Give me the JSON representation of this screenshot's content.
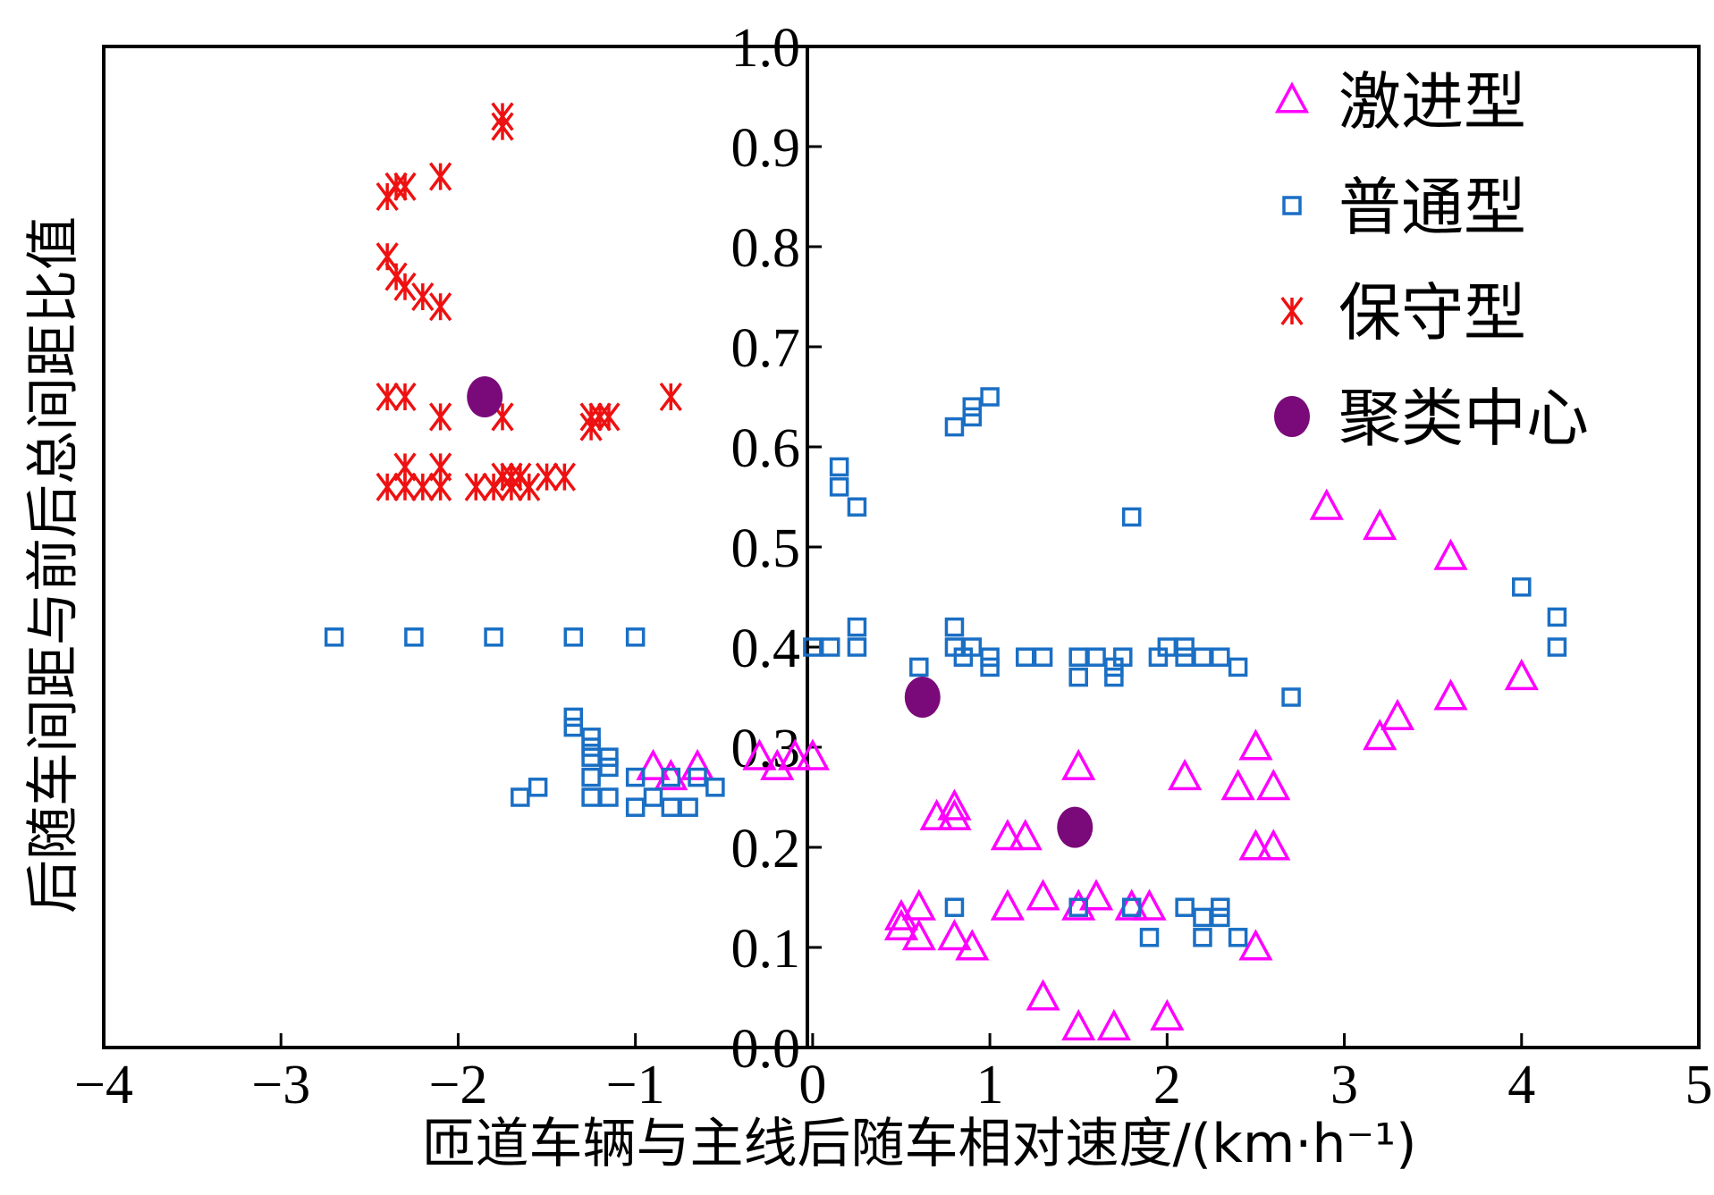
{
  "chart_data": {
    "type": "scatter",
    "xlim": [
      -4,
      5
    ],
    "ylim": [
      0,
      1
    ],
    "x_ticks": [
      "−4",
      "−3",
      "−2",
      "−1",
      "0",
      "1",
      "2",
      "3",
      "4",
      "5"
    ],
    "y_ticks": [
      "0.0",
      "0.1",
      "0.2",
      "0.3",
      "0.4",
      "0.5",
      "0.6",
      "0.7",
      "0.8",
      "0.9",
      "1.0"
    ],
    "xlabel": "匝道车辆与主线后随车相对速度/(km·h⁻¹)",
    "ylabel": "后随车间距与前后总间距比值",
    "grid": false,
    "legend_position": "top-right",
    "series": [
      {
        "name": "激进型",
        "marker": "triangle",
        "color": "#ff00ff",
        "points": [
          [
            -0.9,
            0.28
          ],
          [
            -0.8,
            0.27
          ],
          [
            -0.65,
            0.28
          ],
          [
            -0.3,
            0.29
          ],
          [
            -0.2,
            0.28
          ],
          [
            -0.1,
            0.29
          ],
          [
            0.0,
            0.29
          ],
          [
            0.5,
            0.13
          ],
          [
            0.5,
            0.12
          ],
          [
            0.6,
            0.14
          ],
          [
            0.6,
            0.11
          ],
          [
            0.7,
            0.23
          ],
          [
            0.8,
            0.24
          ],
          [
            0.8,
            0.23
          ],
          [
            0.8,
            0.11
          ],
          [
            0.9,
            0.1
          ],
          [
            1.1,
            0.21
          ],
          [
            1.2,
            0.21
          ],
          [
            1.1,
            0.14
          ],
          [
            1.3,
            0.15
          ],
          [
            1.3,
            0.05
          ],
          [
            1.5,
            0.28
          ],
          [
            1.5,
            0.14
          ],
          [
            1.5,
            0.02
          ],
          [
            1.6,
            0.15
          ],
          [
            1.7,
            0.02
          ],
          [
            1.8,
            0.14
          ],
          [
            1.9,
            0.14
          ],
          [
            2.0,
            0.03
          ],
          [
            2.1,
            0.27
          ],
          [
            2.4,
            0.26
          ],
          [
            2.5,
            0.3
          ],
          [
            2.5,
            0.2
          ],
          [
            2.6,
            0.26
          ],
          [
            2.6,
            0.2
          ],
          [
            2.5,
            0.1
          ],
          [
            2.9,
            0.54
          ],
          [
            3.2,
            0.52
          ],
          [
            3.2,
            0.31
          ],
          [
            3.3,
            0.33
          ],
          [
            3.6,
            0.49
          ],
          [
            3.6,
            0.35
          ],
          [
            4.0,
            0.37
          ]
        ]
      },
      {
        "name": "普通型",
        "marker": "square",
        "color": "#1a6fc4",
        "points": [
          [
            -2.7,
            0.41
          ],
          [
            -2.25,
            0.41
          ],
          [
            -1.8,
            0.41
          ],
          [
            -1.35,
            0.41
          ],
          [
            -1.0,
            0.41
          ],
          [
            -1.65,
            0.25
          ],
          [
            -1.55,
            0.26
          ],
          [
            -1.35,
            0.33
          ],
          [
            -1.35,
            0.32
          ],
          [
            -1.25,
            0.31
          ],
          [
            -1.25,
            0.3
          ],
          [
            -1.25,
            0.29
          ],
          [
            -1.15,
            0.29
          ],
          [
            -1.15,
            0.28
          ],
          [
            -1.25,
            0.27
          ],
          [
            -1.25,
            0.25
          ],
          [
            -1.15,
            0.25
          ],
          [
            -1.0,
            0.27
          ],
          [
            -1.0,
            0.24
          ],
          [
            -0.9,
            0.25
          ],
          [
            -0.8,
            0.27
          ],
          [
            -0.8,
            0.24
          ],
          [
            -0.7,
            0.24
          ],
          [
            -0.65,
            0.27
          ],
          [
            -0.55,
            0.26
          ],
          [
            0.0,
            0.4
          ],
          [
            0.1,
            0.4
          ],
          [
            0.25,
            0.4
          ],
          [
            0.25,
            0.42
          ],
          [
            0.15,
            0.58
          ],
          [
            0.15,
            0.56
          ],
          [
            0.25,
            0.54
          ],
          [
            0.6,
            0.38
          ],
          [
            0.8,
            0.62
          ],
          [
            0.9,
            0.64
          ],
          [
            0.9,
            0.63
          ],
          [
            1.0,
            0.65
          ],
          [
            0.8,
            0.42
          ],
          [
            0.8,
            0.4
          ],
          [
            0.85,
            0.39
          ],
          [
            0.9,
            0.4
          ],
          [
            1.0,
            0.39
          ],
          [
            1.0,
            0.38
          ],
          [
            1.2,
            0.39
          ],
          [
            1.3,
            0.39
          ],
          [
            1.5,
            0.39
          ],
          [
            1.5,
            0.37
          ],
          [
            1.6,
            0.39
          ],
          [
            1.7,
            0.38
          ],
          [
            1.7,
            0.37
          ],
          [
            1.75,
            0.39
          ],
          [
            1.8,
            0.53
          ],
          [
            1.95,
            0.39
          ],
          [
            2.0,
            0.4
          ],
          [
            2.1,
            0.4
          ],
          [
            2.1,
            0.39
          ],
          [
            2.2,
            0.39
          ],
          [
            2.3,
            0.39
          ],
          [
            2.4,
            0.38
          ],
          [
            2.7,
            0.35
          ],
          [
            4.0,
            0.46
          ],
          [
            4.2,
            0.43
          ],
          [
            4.2,
            0.4
          ],
          [
            0.8,
            0.14
          ],
          [
            1.5,
            0.14
          ],
          [
            1.8,
            0.14
          ],
          [
            1.9,
            0.11
          ],
          [
            2.1,
            0.14
          ],
          [
            2.2,
            0.13
          ],
          [
            2.2,
            0.11
          ],
          [
            2.3,
            0.14
          ],
          [
            2.3,
            0.13
          ],
          [
            2.4,
            0.11
          ]
        ]
      },
      {
        "name": "保守型",
        "marker": "asterisk",
        "color": "#ee1111",
        "points": [
          [
            -1.75,
            0.93
          ],
          [
            -1.75,
            0.92
          ],
          [
            -2.4,
            0.85
          ],
          [
            -2.35,
            0.86
          ],
          [
            -2.3,
            0.86
          ],
          [
            -2.1,
            0.87
          ],
          [
            -2.4,
            0.79
          ],
          [
            -2.35,
            0.77
          ],
          [
            -2.3,
            0.76
          ],
          [
            -2.2,
            0.75
          ],
          [
            -2.1,
            0.74
          ],
          [
            -2.4,
            0.65
          ],
          [
            -2.3,
            0.65
          ],
          [
            -2.1,
            0.63
          ],
          [
            -1.75,
            0.63
          ],
          [
            -1.25,
            0.63
          ],
          [
            -1.2,
            0.63
          ],
          [
            -1.25,
            0.62
          ],
          [
            -1.15,
            0.63
          ],
          [
            -0.8,
            0.65
          ],
          [
            -2.4,
            0.56
          ],
          [
            -2.3,
            0.58
          ],
          [
            -2.3,
            0.56
          ],
          [
            -2.2,
            0.56
          ],
          [
            -2.1,
            0.58
          ],
          [
            -2.1,
            0.56
          ],
          [
            -1.9,
            0.56
          ],
          [
            -1.8,
            0.56
          ],
          [
            -1.75,
            0.57
          ],
          [
            -1.7,
            0.57
          ],
          [
            -1.7,
            0.56
          ],
          [
            -1.65,
            0.57
          ],
          [
            -1.6,
            0.56
          ],
          [
            -1.5,
            0.57
          ],
          [
            -1.4,
            0.57
          ]
        ]
      },
      {
        "name": "聚类中心",
        "marker": "circle",
        "color": "#7a0a7a",
        "points": [
          [
            -1.85,
            0.65
          ],
          [
            0.62,
            0.35
          ],
          [
            1.48,
            0.22
          ]
        ]
      }
    ]
  }
}
